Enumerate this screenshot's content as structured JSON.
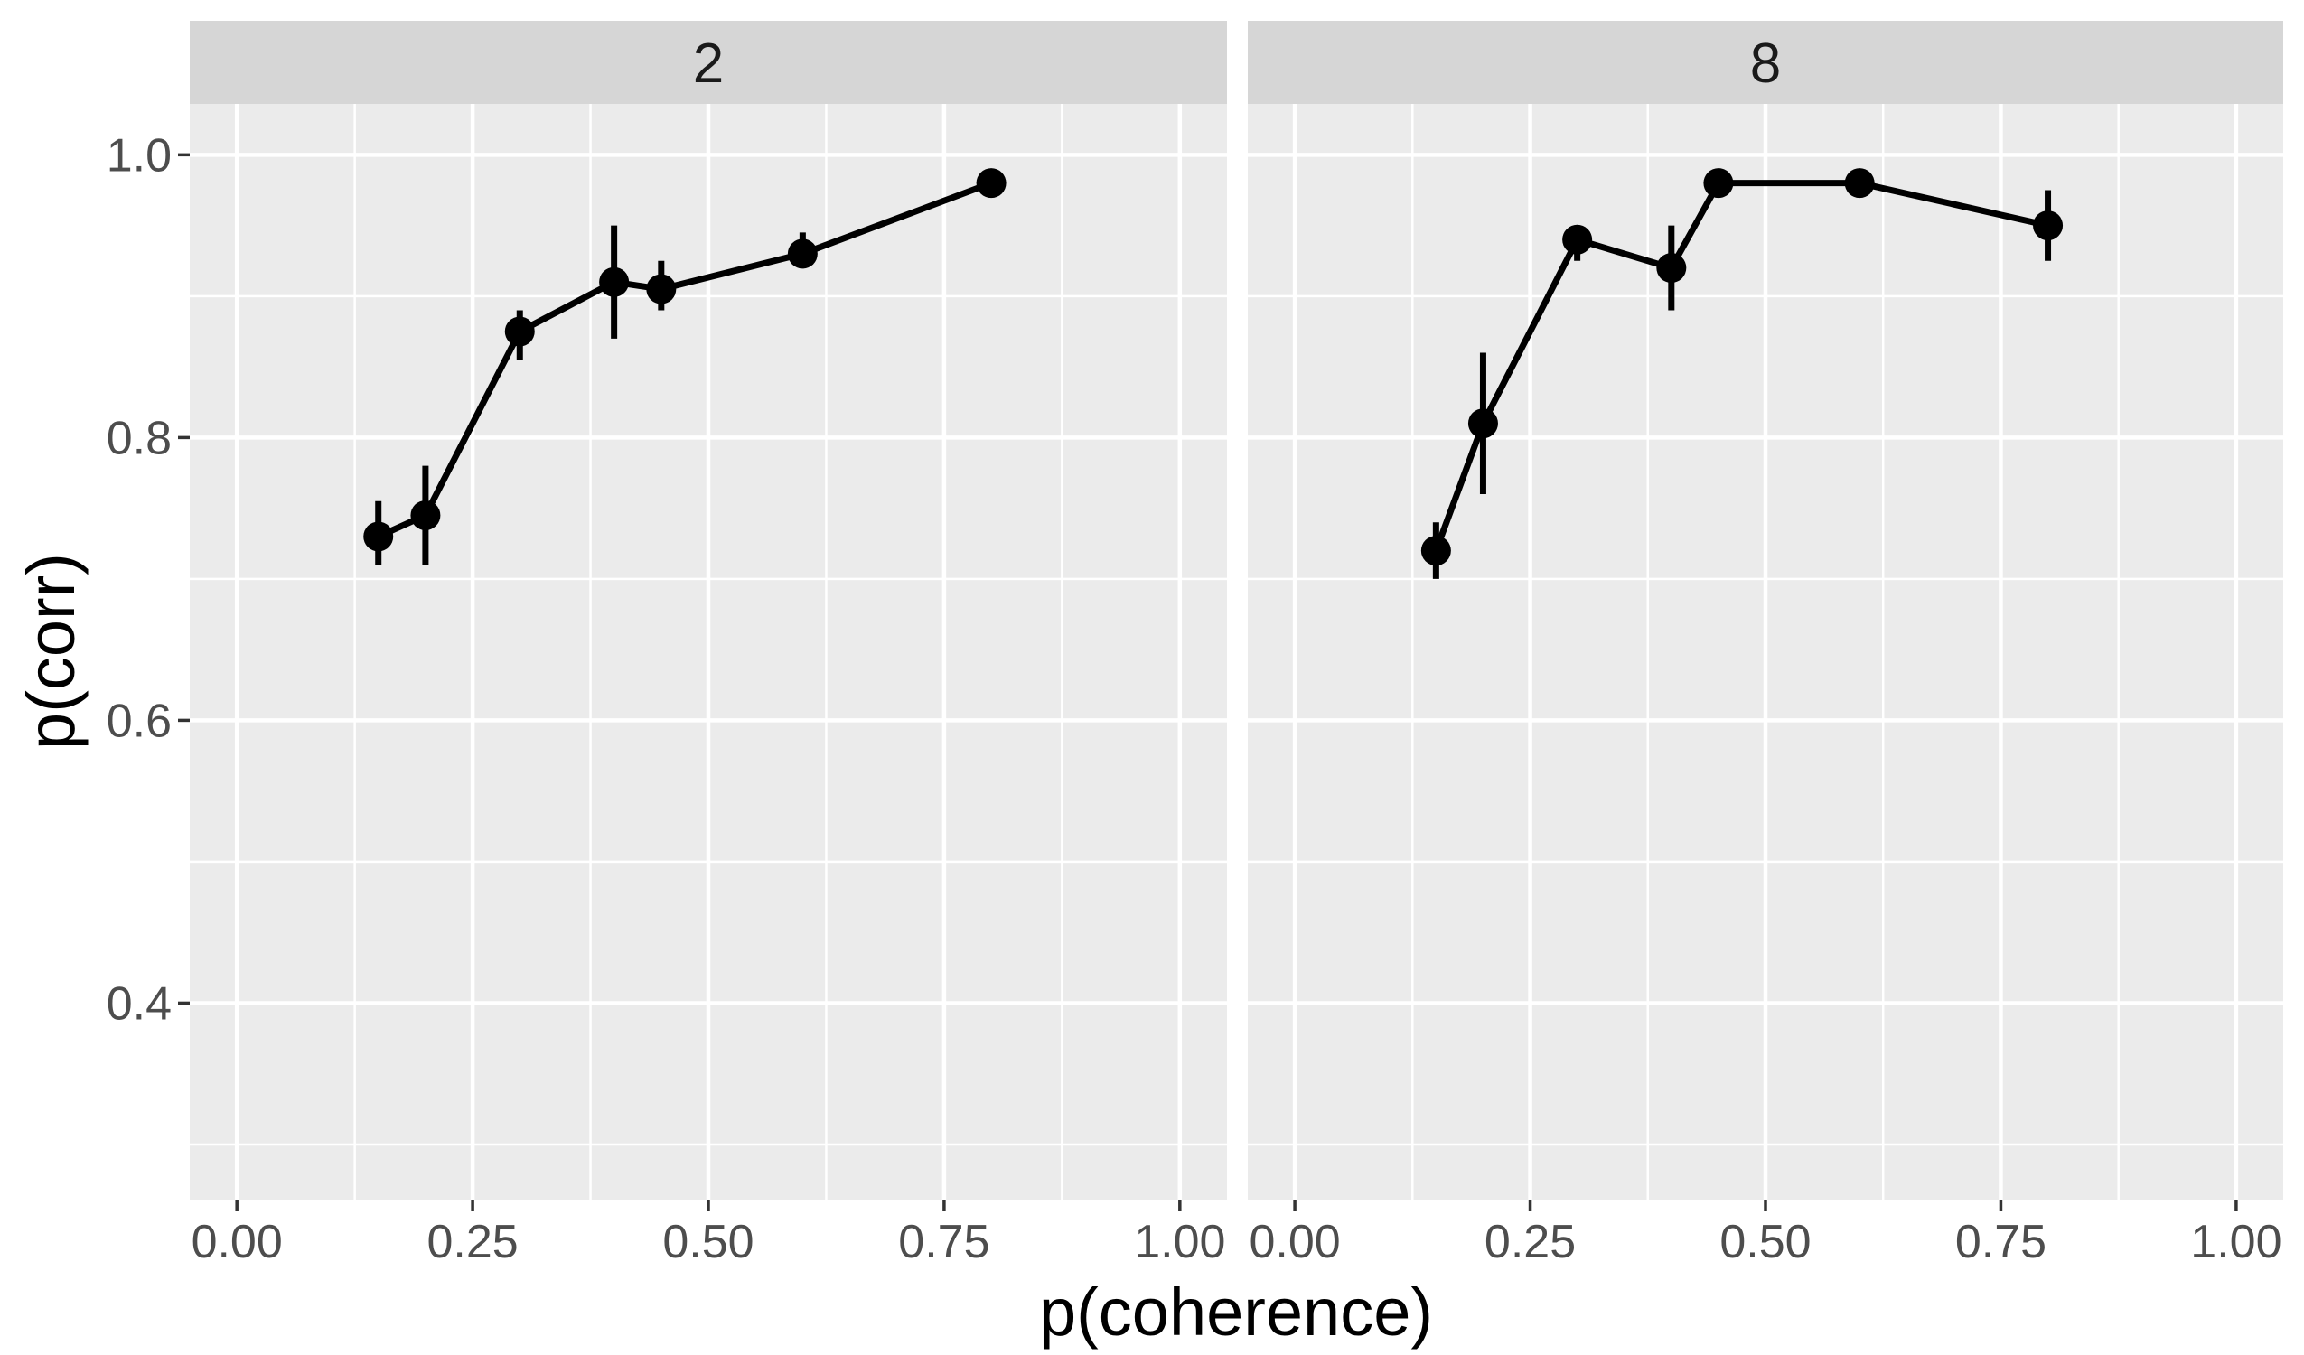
{
  "chart_data": {
    "type": "line",
    "title": "",
    "x_label": "p(coherence)",
    "y_label": "p(corr)",
    "facet_labels": [
      "2",
      "8"
    ],
    "x_ticks": [
      0.0,
      0.25,
      0.5,
      0.75,
      1.0
    ],
    "x_tick_labels": [
      "0.00",
      "0.25",
      "0.50",
      "0.75",
      "1.00"
    ],
    "y_ticks": [
      1.0,
      0.8,
      0.6,
      0.4
    ],
    "y_tick_labels": [
      "1.0",
      "0.8",
      "0.6",
      "0.4"
    ],
    "x_minor_gridlines": [
      0.125,
      0.375,
      0.625,
      0.875
    ],
    "y_minor_gridlines": [
      0.3,
      0.5,
      0.7,
      0.9
    ],
    "x_domain": [
      -0.05,
      1.05
    ],
    "y_domain": [
      0.261,
      1.036
    ],
    "grid": true,
    "legend": "none",
    "series": [
      {
        "facet": "2",
        "x": [
          0.15,
          0.2,
          0.3,
          0.4,
          0.45,
          0.6,
          0.8
        ],
        "y": [
          0.73,
          0.745,
          0.875,
          0.91,
          0.905,
          0.93,
          0.98
        ],
        "ymin": [
          0.71,
          0.71,
          0.855,
          0.87,
          0.89,
          0.92,
          0.972
        ],
        "ymax": [
          0.755,
          0.78,
          0.89,
          0.95,
          0.925,
          0.945,
          0.988
        ]
      },
      {
        "facet": "8",
        "x": [
          0.15,
          0.2,
          0.3,
          0.4,
          0.45,
          0.6,
          0.8
        ],
        "y": [
          0.72,
          0.81,
          0.94,
          0.92,
          0.98,
          0.98,
          0.95
        ],
        "ymin": [
          0.7,
          0.76,
          0.925,
          0.89,
          0.972,
          0.972,
          0.925
        ],
        "ymax": [
          0.74,
          0.86,
          0.95,
          0.95,
          0.988,
          0.988,
          0.975
        ]
      }
    ],
    "colors": {
      "background": "#ffffff",
      "panel_bg": "#ebebeb",
      "strip_bg": "#d6d6d6",
      "gridline": "#ffffff",
      "point": "#000000",
      "line": "#000000",
      "errorbar": "#000000",
      "tick_mark": "#333333",
      "tick_text": "#4d4d4d",
      "axis_title_text": "#000000",
      "strip_text": "#1a1a1a"
    }
  }
}
